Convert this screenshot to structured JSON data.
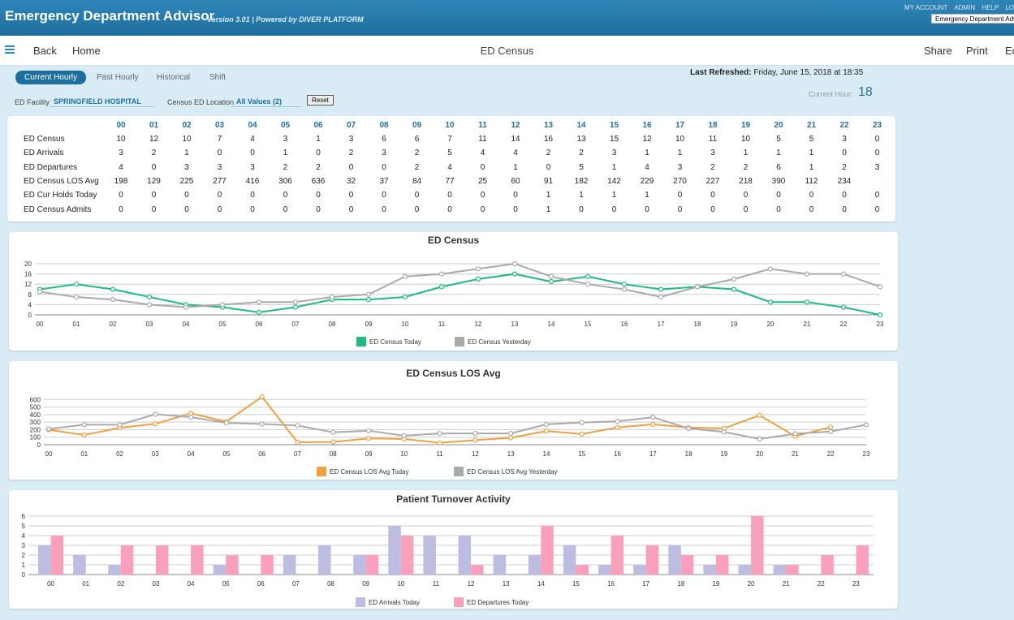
{
  "header": {
    "app_title": "Emergency Department Advisor",
    "version_text": "Version 3.01  |  Powered by DIVER PLATFORM",
    "links": [
      "MY ACCOUNT",
      "ADMIN",
      "HELP",
      "LO"
    ],
    "dropdown_value": "Emergency Department Advis"
  },
  "nav": {
    "back_label": "Back",
    "home_label": "Home",
    "page_title": "ED Census",
    "share_label": "Share",
    "print_label": "Print",
    "edit_label": "Ec"
  },
  "tabs": [
    "Current Hourly",
    "Past Hourly",
    "Historical",
    "Shift"
  ],
  "refresh": {
    "label": "Last Refreshed:",
    "value": "Friday, June 15, 2018 at 18:35"
  },
  "current_hour": {
    "label": "Current Hour:",
    "value": "18"
  },
  "filters": {
    "facility_label": "ED Facility",
    "facility_value": "SPRINGFIELD HOSPITAL",
    "location_label": "Census ED Location",
    "location_value": "All Values (2)",
    "reset_label": "Reset"
  },
  "table": {
    "hours": [
      "00",
      "01",
      "02",
      "03",
      "04",
      "05",
      "06",
      "07",
      "08",
      "09",
      "10",
      "11",
      "12",
      "13",
      "14",
      "15",
      "16",
      "17",
      "18",
      "19",
      "20",
      "21",
      "22",
      "23"
    ],
    "rows": [
      {
        "label": "ED Census",
        "values": [
          "10",
          "12",
          "10",
          "7",
          "4",
          "3",
          "1",
          "3",
          "6",
          "6",
          "7",
          "11",
          "14",
          "16",
          "13",
          "15",
          "12",
          "10",
          "11",
          "10",
          "5",
          "5",
          "3",
          "0"
        ]
      },
      {
        "label": "ED Arrivals",
        "values": [
          "3",
          "2",
          "1",
          "0",
          "0",
          "1",
          "0",
          "2",
          "3",
          "2",
          "5",
          "4",
          "4",
          "2",
          "2",
          "3",
          "1",
          "1",
          "3",
          "1",
          "1",
          "1",
          "0",
          "0"
        ]
      },
      {
        "label": "ED Departures",
        "values": [
          "4",
          "0",
          "3",
          "3",
          "3",
          "2",
          "2",
          "0",
          "0",
          "2",
          "4",
          "0",
          "1",
          "0",
          "5",
          "1",
          "4",
          "3",
          "2",
          "2",
          "6",
          "1",
          "2",
          "3"
        ]
      },
      {
        "label": "ED Census LOS Avg",
        "values": [
          "198",
          "129",
          "225",
          "277",
          "416",
          "306",
          "636",
          "32",
          "37",
          "84",
          "77",
          "25",
          "60",
          "91",
          "182",
          "142",
          "229",
          "270",
          "227",
          "218",
          "390",
          "112",
          "234",
          ""
        ]
      },
      {
        "label": "ED Cur Holds Today",
        "values": [
          "0",
          "0",
          "0",
          "0",
          "0",
          "0",
          "0",
          "0",
          "0",
          "0",
          "0",
          "0",
          "0",
          "1",
          "1",
          "1",
          "1",
          "0",
          "0",
          "0",
          "0",
          "0",
          "0",
          "0"
        ]
      },
      {
        "label": "ED Census Admits",
        "values": [
          "0",
          "0",
          "0",
          "0",
          "0",
          "0",
          "0",
          "0",
          "0",
          "0",
          "0",
          "0",
          "0",
          "1",
          "0",
          "0",
          "0",
          "0",
          "0",
          "0",
          "0",
          "0",
          "0",
          "0"
        ]
      }
    ]
  },
  "chart_data": [
    {
      "type": "line",
      "title": "ED Census",
      "x": [
        "00",
        "01",
        "02",
        "03",
        "04",
        "05",
        "06",
        "07",
        "08",
        "09",
        "10",
        "11",
        "12",
        "13",
        "14",
        "15",
        "16",
        "17",
        "18",
        "19",
        "20",
        "21",
        "22",
        "23"
      ],
      "ylim": [
        0,
        20
      ],
      "yticks": [
        "0",
        "4",
        "8",
        "12",
        "16",
        "20"
      ],
      "grid": true,
      "legend": "bottom",
      "series": [
        {
          "name": "ED Census Today",
          "color": "#1abc82",
          "values": [
            10,
            12,
            10,
            7,
            4,
            3,
            1,
            3,
            6,
            6,
            7,
            11,
            14,
            16,
            13,
            15,
            12,
            10,
            11,
            10,
            5,
            5,
            3,
            0
          ]
        },
        {
          "name": "ED Census Yesterday",
          "color": "#aaaaaa",
          "values": [
            9,
            7,
            6,
            4,
            3,
            4,
            5,
            5,
            7,
            8,
            15,
            16,
            18,
            20,
            15,
            12,
            10,
            7,
            11,
            14,
            18,
            16,
            16,
            11
          ]
        }
      ]
    },
    {
      "type": "line",
      "title": "ED Census LOS Avg",
      "x": [
        "00",
        "01",
        "02",
        "03",
        "04",
        "05",
        "06",
        "07",
        "08",
        "09",
        "10",
        "11",
        "12",
        "13",
        "14",
        "15",
        "16",
        "17",
        "18",
        "19",
        "20",
        "21",
        "22",
        "23"
      ],
      "ylim": [
        0,
        700
      ],
      "yticks": [
        "0",
        "100",
        "200",
        "300",
        "400",
        "500",
        "600"
      ],
      "grid": true,
      "legend": "bottom",
      "series": [
        {
          "name": "ED Census LOS Avg Today",
          "color": "#f0a040",
          "values": [
            198,
            129,
            225,
            277,
            416,
            306,
            636,
            32,
            37,
            84,
            77,
            25,
            60,
            91,
            182,
            142,
            229,
            270,
            227,
            218,
            390,
            112,
            234,
            null
          ]
        },
        {
          "name": "ED Census LOS Avg Yesterday",
          "color": "#aaaaaa",
          "values": [
            210,
            265,
            265,
            405,
            365,
            290,
            275,
            255,
            165,
            185,
            120,
            150,
            150,
            150,
            270,
            295,
            310,
            365,
            215,
            170,
            75,
            145,
            175,
            265
          ]
        }
      ]
    },
    {
      "type": "bar",
      "title": "Patient Turnover Activity",
      "categories": [
        "00",
        "01",
        "02",
        "03",
        "04",
        "05",
        "06",
        "07",
        "08",
        "09",
        "10",
        "11",
        "12",
        "13",
        "14",
        "15",
        "16",
        "17",
        "18",
        "19",
        "20",
        "21",
        "22",
        "23"
      ],
      "ylim": [
        0,
        6
      ],
      "yticks": [
        "0",
        "1",
        "2",
        "3",
        "4",
        "5",
        "6"
      ],
      "grid": true,
      "legend": "bottom",
      "series": [
        {
          "name": "ED Arrivals Today",
          "color": "#bcbde0",
          "values": [
            3,
            2,
            1,
            0,
            0,
            1,
            0,
            2,
            3,
            2,
            5,
            4,
            4,
            2,
            2,
            3,
            1,
            1,
            3,
            1,
            1,
            1,
            0,
            0
          ]
        },
        {
          "name": "ED Departures Today",
          "color": "#f8a0bc",
          "values": [
            4,
            0,
            3,
            3,
            3,
            2,
            2,
            0,
            0,
            2,
            4,
            0,
            1,
            0,
            5,
            1,
            4,
            3,
            2,
            2,
            6,
            1,
            2,
            3
          ]
        }
      ]
    }
  ]
}
